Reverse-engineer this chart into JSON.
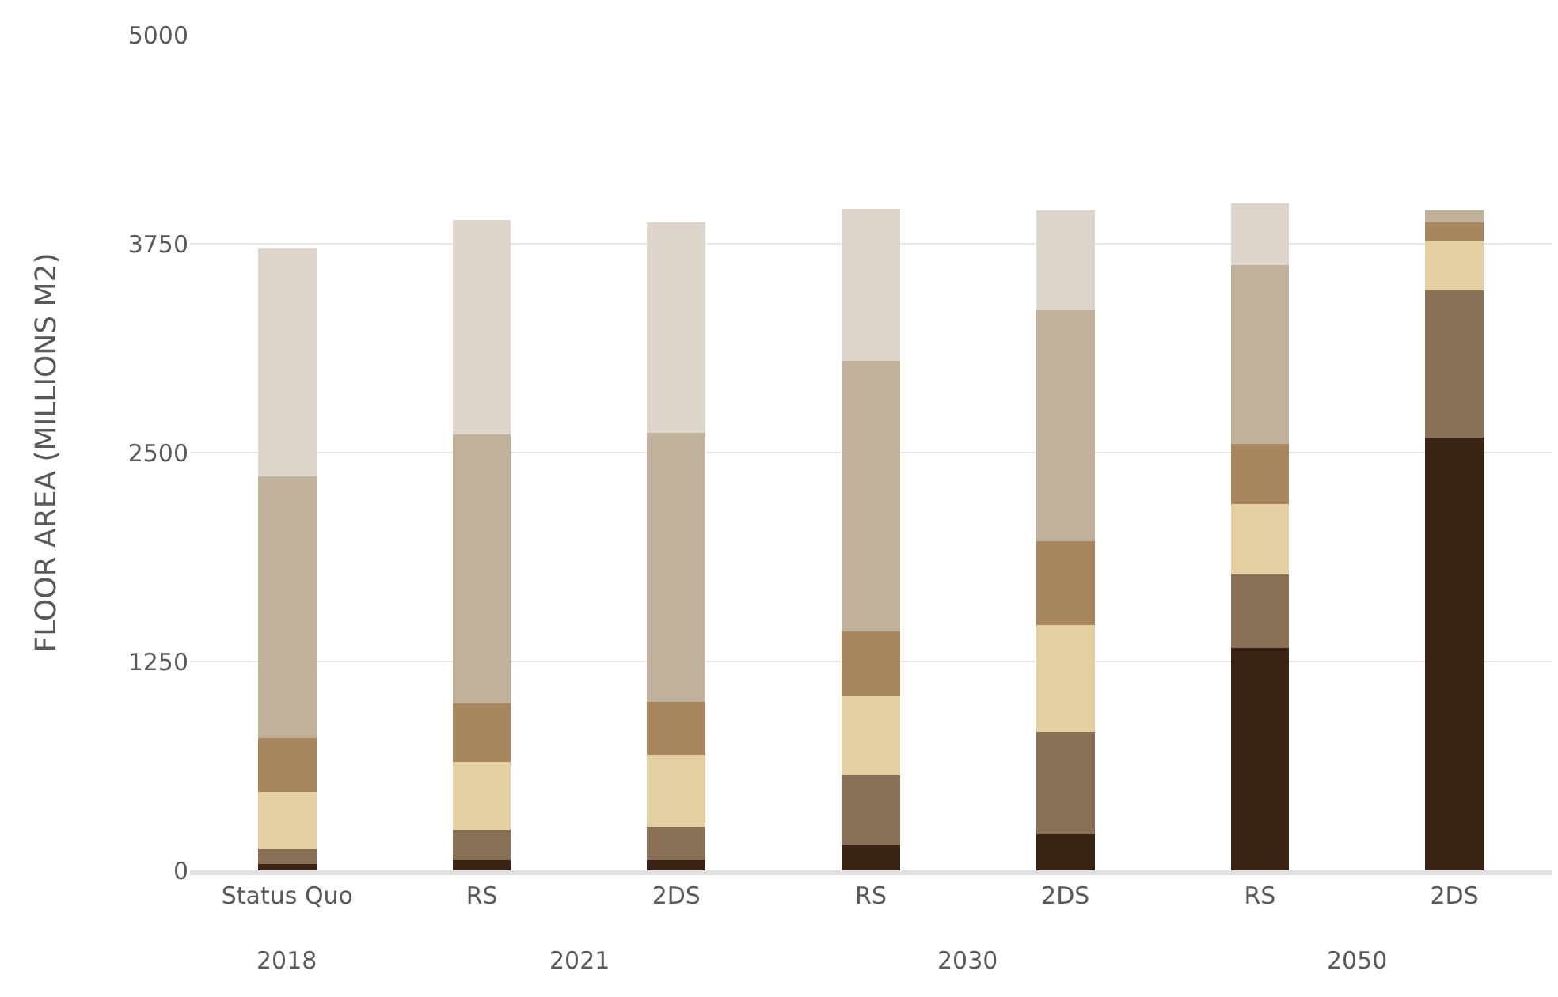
{
  "chart_data": {
    "type": "bar",
    "stacked": true,
    "ylabel": "FLOOR AREA (MILLIONS M2)",
    "categories": [
      "Status Quo",
      "RS",
      "2DS",
      "RS",
      "2DS",
      "RS",
      "2DS"
    ],
    "series": [
      {
        "color": "#3a2215",
        "values": [
          40,
          60,
          60,
          150,
          220,
          1330,
          2590
        ]
      },
      {
        "color": "#8a6f57",
        "values": [
          90,
          180,
          200,
          420,
          610,
          440,
          880
        ]
      },
      {
        "color": "#e4cfa3",
        "values": [
          340,
          410,
          430,
          470,
          640,
          420,
          300
        ]
      },
      {
        "color": "#a8865f",
        "values": [
          320,
          350,
          320,
          390,
          500,
          360,
          110
        ]
      },
      {
        "color": "#c0b29a",
        "values": [
          1570,
          1610,
          1610,
          1620,
          1380,
          1070,
          70
        ]
      },
      {
        "color": "#ddd5cb",
        "values": [
          1360,
          1280,
          1260,
          910,
          600,
          370,
          0
        ]
      }
    ],
    "ylim": [
      0,
      5000
    ],
    "yticks": [
      0,
      1250,
      2500,
      3750,
      5000
    ],
    "grid": "y",
    "annotations": [
      "2018",
      "2021",
      "2030",
      "2050"
    ]
  }
}
